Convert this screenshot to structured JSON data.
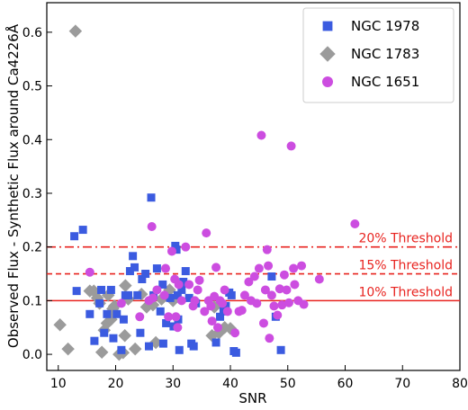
{
  "chart_data": {
    "type": "scatter",
    "title": "",
    "xlabel": "SNR",
    "ylabel": "Observed Flux - Synthetic Flux around Ca4226Å",
    "xlim": [
      8,
      80
    ],
    "ylim": [
      -0.03,
      0.655
    ],
    "xticks": [
      10,
      20,
      30,
      40,
      50,
      60,
      70,
      80
    ],
    "yticks": [
      0.0,
      0.1,
      0.2,
      0.3,
      0.4,
      0.5,
      0.6
    ],
    "ytick_labels": [
      "0.0",
      "0.1",
      "0.2",
      "0.3",
      "0.4",
      "0.5",
      "0.6"
    ],
    "grid": false,
    "legend_position": "top-right",
    "thresholds": [
      {
        "label": "20% Threshold",
        "y": 0.2,
        "style": "dashdot",
        "color": "#e8231f"
      },
      {
        "label": "15% Threshold",
        "y": 0.15,
        "style": "dashed",
        "color": "#e8231f"
      },
      {
        "label": "10% Threshold",
        "y": 0.1,
        "style": "solid",
        "color": "#e8231f"
      }
    ],
    "series": [
      {
        "name": "NGC 1978",
        "marker": "square",
        "color": "#3b5be0",
        "points": [
          [
            12.8,
            0.22
          ],
          [
            14.3,
            0.232
          ],
          [
            13.2,
            0.118
          ],
          [
            15.5,
            0.075
          ],
          [
            16.3,
            0.025
          ],
          [
            17.2,
            0.095
          ],
          [
            17.5,
            0.12
          ],
          [
            18.0,
            0.04
          ],
          [
            18.5,
            0.075
          ],
          [
            19.2,
            0.12
          ],
          [
            19.6,
            0.03
          ],
          [
            20.2,
            0.075
          ],
          [
            21.0,
            0.008
          ],
          [
            21.4,
            0.065
          ],
          [
            21.7,
            0.11
          ],
          [
            22.2,
            0.11
          ],
          [
            22.5,
            0.155
          ],
          [
            23.0,
            0.183
          ],
          [
            23.3,
            0.162
          ],
          [
            23.8,
            0.11
          ],
          [
            24.3,
            0.04
          ],
          [
            24.6,
            0.14
          ],
          [
            25.2,
            0.15
          ],
          [
            25.8,
            0.015
          ],
          [
            26.2,
            0.292
          ],
          [
            26.6,
            0.11
          ],
          [
            27.2,
            0.16
          ],
          [
            27.8,
            0.08
          ],
          [
            28.3,
            0.02
          ],
          [
            28.8,
            0.058
          ],
          [
            29.5,
            0.105
          ],
          [
            30.1,
            0.052
          ],
          [
            30.4,
            0.202
          ],
          [
            30.6,
            0.195
          ],
          [
            30.9,
            0.065
          ],
          [
            31.1,
            0.008
          ],
          [
            31.5,
            0.12
          ],
          [
            31.8,
            0.135
          ],
          [
            32.2,
            0.155
          ],
          [
            32.8,
            0.105
          ],
          [
            33.2,
            0.02
          ],
          [
            33.6,
            0.015
          ],
          [
            34.0,
            0.095
          ],
          [
            37.5,
            0.022
          ],
          [
            38.2,
            0.07
          ],
          [
            38.8,
            0.08
          ],
          [
            39.2,
            0.09
          ],
          [
            39.8,
            0.115
          ],
          [
            40.2,
            0.11
          ],
          [
            40.6,
            0.006
          ],
          [
            41.0,
            0.003
          ],
          [
            47.2,
            0.145
          ],
          [
            47.9,
            0.07
          ],
          [
            48.8,
            0.008
          ],
          [
            30.8,
            0.11
          ],
          [
            28.2,
            0.13
          ]
        ]
      },
      {
        "name": "NGC 1783",
        "marker": "diamond",
        "color": "#9b9b9b",
        "points": [
          [
            13.0,
            0.602
          ],
          [
            10.3,
            0.055
          ],
          [
            11.7,
            0.01
          ],
          [
            15.5,
            0.118
          ],
          [
            16.2,
            0.118
          ],
          [
            16.8,
            0.105
          ],
          [
            17.2,
            0.095
          ],
          [
            17.6,
            0.004
          ],
          [
            18.0,
            0.045
          ],
          [
            18.5,
            0.058
          ],
          [
            18.7,
            0.11
          ],
          [
            19.2,
            0.065
          ],
          [
            19.5,
            0.085
          ],
          [
            19.8,
            0.09
          ],
          [
            20.6,
            0.0
          ],
          [
            21.3,
            0.003
          ],
          [
            21.6,
            0.035
          ],
          [
            21.7,
            0.128
          ],
          [
            22.2,
            0.103
          ],
          [
            23.4,
            0.01
          ],
          [
            24.5,
            0.112
          ],
          [
            25.4,
            0.088
          ],
          [
            26.5,
            0.092
          ],
          [
            27.0,
            0.022
          ],
          [
            28.0,
            0.103
          ],
          [
            29.4,
            0.12
          ],
          [
            30.0,
            0.1
          ],
          [
            36.8,
            0.035
          ],
          [
            37.2,
            0.088
          ],
          [
            38.0,
            0.04
          ],
          [
            39.0,
            0.05
          ],
          [
            40.0,
            0.048
          ]
        ]
      },
      {
        "name": "NGC 1651",
        "marker": "circle",
        "color": "#cc4de0",
        "points": [
          [
            15.5,
            0.153
          ],
          [
            26.3,
            0.238
          ],
          [
            21.0,
            0.095
          ],
          [
            24.2,
            0.07
          ],
          [
            25.8,
            0.1
          ],
          [
            26.5,
            0.105
          ],
          [
            27.2,
            0.12
          ],
          [
            28.5,
            0.11
          ],
          [
            29.2,
            0.07
          ],
          [
            29.8,
            0.192
          ],
          [
            30.5,
            0.07
          ],
          [
            30.8,
            0.05
          ],
          [
            31.0,
            0.13
          ],
          [
            31.5,
            0.1
          ],
          [
            32.2,
            0.2
          ],
          [
            32.8,
            0.13
          ],
          [
            33.5,
            0.09
          ],
          [
            33.8,
            0.1
          ],
          [
            34.6,
            0.138
          ],
          [
            35.5,
            0.08
          ],
          [
            35.8,
            0.226
          ],
          [
            36.2,
            0.1
          ],
          [
            36.6,
            0.09
          ],
          [
            36.8,
            0.062
          ],
          [
            37.2,
            0.108
          ],
          [
            37.5,
            0.162
          ],
          [
            37.8,
            0.05
          ],
          [
            38.2,
            0.1
          ],
          [
            38.6,
            0.095
          ],
          [
            39.0,
            0.12
          ],
          [
            39.5,
            0.08
          ],
          [
            40.8,
            0.04
          ],
          [
            41.5,
            0.08
          ],
          [
            42.0,
            0.082
          ],
          [
            42.5,
            0.11
          ],
          [
            43.2,
            0.135
          ],
          [
            43.6,
            0.1
          ],
          [
            44.2,
            0.145
          ],
          [
            44.6,
            0.095
          ],
          [
            45.0,
            0.16
          ],
          [
            45.4,
            0.408
          ],
          [
            45.8,
            0.058
          ],
          [
            46.1,
            0.12
          ],
          [
            46.4,
            0.195
          ],
          [
            46.6,
            0.165
          ],
          [
            46.8,
            0.03
          ],
          [
            47.2,
            0.11
          ],
          [
            47.6,
            0.09
          ],
          [
            48.2,
            0.073
          ],
          [
            48.6,
            0.122
          ],
          [
            49.0,
            0.092
          ],
          [
            49.4,
            0.148
          ],
          [
            49.8,
            0.12
          ],
          [
            50.2,
            0.096
          ],
          [
            50.6,
            0.388
          ],
          [
            51.0,
            0.16
          ],
          [
            51.2,
            0.13
          ],
          [
            51.8,
            0.1
          ],
          [
            52.4,
            0.165
          ],
          [
            52.8,
            0.093
          ],
          [
            55.5,
            0.14
          ],
          [
            61.7,
            0.243
          ],
          [
            28.7,
            0.16
          ],
          [
            34.3,
            0.12
          ],
          [
            30.3,
            0.14
          ]
        ]
      }
    ]
  }
}
